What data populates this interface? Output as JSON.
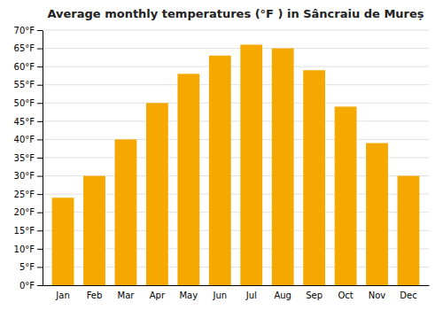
{
  "chart_data": {
    "type": "bar",
    "title": "Average monthly temperatures (°F ) in Sâncraiu de Mureș",
    "categories": [
      "Jan",
      "Feb",
      "Mar",
      "Apr",
      "May",
      "Jun",
      "Jul",
      "Aug",
      "Sep",
      "Oct",
      "Nov",
      "Dec"
    ],
    "values": [
      24,
      30,
      40,
      50,
      58,
      63,
      66,
      65,
      59,
      49,
      39,
      30
    ],
    "color": "#F5A800",
    "ylim": [
      0,
      70
    ],
    "yticks": [
      {
        "value": 0,
        "label": "0°F"
      },
      {
        "value": 5,
        "label": "5°F"
      },
      {
        "value": 10,
        "label": "10°F"
      },
      {
        "value": 15,
        "label": "15°F"
      },
      {
        "value": 20,
        "label": "20°F"
      },
      {
        "value": 25,
        "label": "25°F"
      },
      {
        "value": 30,
        "label": "30°F"
      },
      {
        "value": 35,
        "label": "35°F"
      },
      {
        "value": 40,
        "label": "40°F"
      },
      {
        "value": 45,
        "label": "45°F"
      },
      {
        "value": 50,
        "label": "50°F"
      },
      {
        "value": 55,
        "label": "55°F"
      },
      {
        "value": 60,
        "label": "60°F"
      },
      {
        "value": 65,
        "label": "65°F"
      },
      {
        "value": 70,
        "label": "70°F"
      }
    ],
    "grid": true
  }
}
